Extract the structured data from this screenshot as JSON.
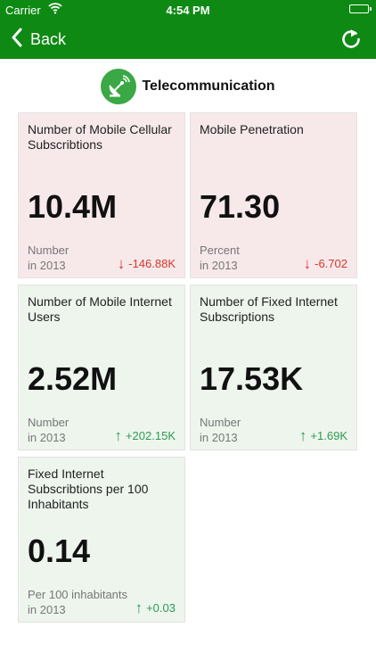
{
  "status_bar": {
    "carrier": "Carrier",
    "time": "4:54 PM"
  },
  "nav": {
    "back_label": "Back",
    "colors": {
      "bar": "#0e8a14"
    }
  },
  "header": {
    "title": "Telecommunication",
    "icon": "satellite-dish-icon"
  },
  "cards": [
    {
      "title": "Number of Mobile Cellular Subscribtions",
      "value": "10.4M",
      "unit": "Number",
      "year": "in 2013",
      "change": "-146.88K",
      "trend": "down"
    },
    {
      "title": "Mobile Penetration",
      "value": "71.30",
      "unit": "Percent",
      "year": "in 2013",
      "change": "-6.702",
      "trend": "down"
    },
    {
      "title": "Number of Mobile Internet Users",
      "value": "2.52M",
      "unit": "Number",
      "year": "in 2013",
      "change": "+202.15K",
      "trend": "up"
    },
    {
      "title": "Number of Fixed Internet Subscriptions",
      "value": "17.53K",
      "unit": "Number",
      "year": "in 2013",
      "change": "+1.69K",
      "trend": "up"
    },
    {
      "title": "Fixed Internet Subscribtions per 100 Inhabitants",
      "value": "0.14",
      "unit": "Per 100 inhabitants",
      "year": "in 2013",
      "change": "+0.03",
      "trend": "up"
    }
  ],
  "colors": {
    "negative_card": "#f7e9ea",
    "positive_card": "#edf5ed",
    "down": "#d9342b",
    "up": "#2e9a55"
  }
}
